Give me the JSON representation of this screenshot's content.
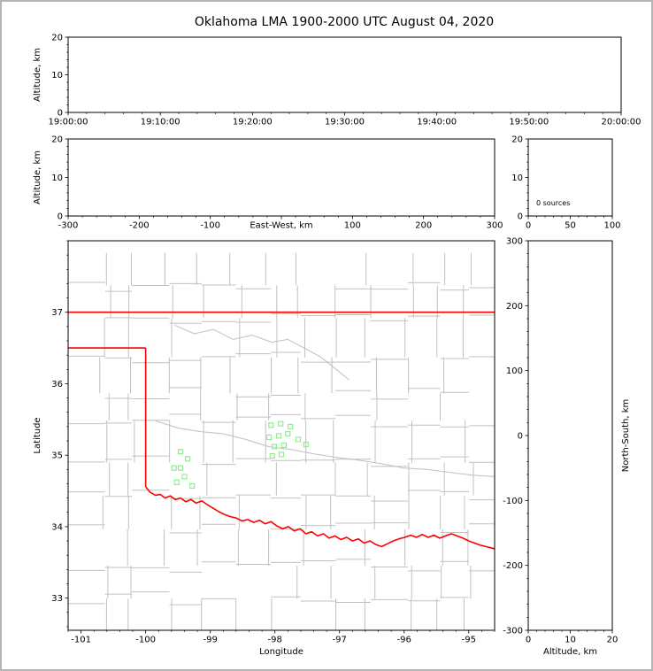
{
  "title": "Oklahoma LMA 1900-2000 UTC August 04, 2020",
  "colors": {
    "axis": "#000000",
    "state_border": "#ff0000",
    "county_lines": "#c0c0c0",
    "rivers": "#c0c0c0",
    "station_marker": "#90ee90",
    "background": "#ffffff",
    "frame": "#b4b4b4"
  },
  "chart_data": [
    {
      "id": "time_height",
      "type": "scatter",
      "xlim": [
        0,
        60
      ],
      "xticks": [
        0,
        10,
        20,
        30,
        40,
        50,
        60
      ],
      "xticklabels": [
        "19:00:00",
        "19:10:00",
        "19:20:00",
        "19:30:00",
        "19:40:00",
        "19:50:00",
        "20:00:00"
      ],
      "xminor": 2,
      "ylim": [
        0,
        20
      ],
      "yticks": [
        0,
        10,
        20
      ],
      "yminor": 2,
      "ylabel": "Altitude, km",
      "points": []
    },
    {
      "id": "ew_height",
      "type": "scatter",
      "xlim": [
        -300,
        300
      ],
      "xticks": [
        -300,
        -200,
        -100,
        0,
        100,
        200,
        300
      ],
      "xticklabels": [
        "-300",
        "-200",
        "-100",
        "",
        "100",
        "200",
        "300"
      ],
      "xminor": 20,
      "xlabel": "East-West, km",
      "xlabel_inline": true,
      "ylim": [
        0,
        20
      ],
      "yticks": [
        0,
        10,
        20
      ],
      "yminor": 2,
      "ylabel": "Altitude, km",
      "points": []
    },
    {
      "id": "alt_hist",
      "type": "line",
      "xlim": [
        0,
        100
      ],
      "xticks": [
        0,
        50,
        100
      ],
      "xminor": 10,
      "ylim": [
        0,
        20
      ],
      "yticks": [
        0,
        10,
        20
      ],
      "yminor": 2,
      "annotation": "0 sources",
      "points": []
    },
    {
      "id": "map",
      "type": "scatter",
      "xlim": [
        -101.2,
        -94.6
      ],
      "xticks": [
        -101,
        -100,
        -99,
        -98,
        -97,
        -96,
        -95
      ],
      "xminor": 0.2,
      "xlabel": "Longitude",
      "ylim": [
        32.55,
        38.0
      ],
      "yticks": [
        33,
        34,
        35,
        36,
        37
      ],
      "yminor": 0.2,
      "ylabel": "Latitude",
      "stations": [
        [
          -98.06,
          35.42
        ],
        [
          -97.91,
          35.44
        ],
        [
          -97.76,
          35.4
        ],
        [
          -98.09,
          35.25
        ],
        [
          -97.94,
          35.27
        ],
        [
          -97.8,
          35.3
        ],
        [
          -98.01,
          35.12
        ],
        [
          -97.86,
          35.14
        ],
        [
          -97.64,
          35.22
        ],
        [
          -97.52,
          35.15
        ],
        [
          -98.04,
          34.99
        ],
        [
          -97.9,
          35.01
        ],
        [
          -99.46,
          35.05
        ],
        [
          -99.35,
          34.95
        ],
        [
          -99.56,
          34.82
        ],
        [
          -99.46,
          34.82
        ],
        [
          -99.4,
          34.7
        ],
        [
          -99.52,
          34.62
        ],
        [
          -99.28,
          34.57
        ]
      ],
      "state_border": {
        "segments": [
          {
            "name": "kansas-line",
            "points": [
              [
                -101.2,
                37.0
              ],
              [
                -94.6,
                37.0
              ]
            ]
          },
          {
            "name": "panhandle-south",
            "points": [
              [
                -101.2,
                36.5
              ],
              [
                -100.0,
                36.5
              ]
            ]
          },
          {
            "name": "texas-west",
            "points": [
              [
                -100.0,
                36.5
              ],
              [
                -100.0,
                34.56
              ]
            ]
          },
          {
            "name": "red-river",
            "points": [
              [
                -100.0,
                34.56
              ],
              [
                -99.93,
                34.48
              ],
              [
                -99.85,
                34.44
              ],
              [
                -99.77,
                34.45
              ],
              [
                -99.7,
                34.4
              ],
              [
                -99.62,
                34.43
              ],
              [
                -99.54,
                34.38
              ],
              [
                -99.46,
                34.4
              ],
              [
                -99.38,
                34.35
              ],
              [
                -99.3,
                34.38
              ],
              [
                -99.22,
                34.33
              ],
              [
                -99.13,
                34.36
              ],
              [
                -99.05,
                34.31
              ],
              [
                -98.96,
                34.26
              ],
              [
                -98.87,
                34.21
              ],
              [
                -98.78,
                34.17
              ],
              [
                -98.69,
                34.14
              ],
              [
                -98.6,
                34.12
              ],
              [
                -98.51,
                34.08
              ],
              [
                -98.42,
                34.1
              ],
              [
                -98.33,
                34.06
              ],
              [
                -98.24,
                34.09
              ],
              [
                -98.15,
                34.04
              ],
              [
                -98.06,
                34.07
              ],
              [
                -97.97,
                34.01
              ],
              [
                -97.88,
                33.97
              ],
              [
                -97.79,
                34.0
              ],
              [
                -97.7,
                33.94
              ],
              [
                -97.61,
                33.97
              ],
              [
                -97.52,
                33.9
              ],
              [
                -97.43,
                33.93
              ],
              [
                -97.34,
                33.87
              ],
              [
                -97.25,
                33.9
              ],
              [
                -97.16,
                33.84
              ],
              [
                -97.07,
                33.87
              ],
              [
                -96.98,
                33.82
              ],
              [
                -96.89,
                33.85
              ],
              [
                -96.8,
                33.8
              ],
              [
                -96.71,
                33.83
              ],
              [
                -96.62,
                33.77
              ],
              [
                -96.53,
                33.8
              ],
              [
                -96.44,
                33.75
              ],
              [
                -96.35,
                33.72
              ],
              [
                -96.26,
                33.76
              ],
              [
                -96.17,
                33.8
              ],
              [
                -96.08,
                33.83
              ],
              [
                -95.99,
                33.85
              ],
              [
                -95.9,
                33.88
              ],
              [
                -95.81,
                33.85
              ],
              [
                -95.72,
                33.89
              ],
              [
                -95.63,
                33.85
              ],
              [
                -95.54,
                33.88
              ],
              [
                -95.45,
                33.84
              ],
              [
                -95.36,
                33.87
              ],
              [
                -95.27,
                33.9
              ],
              [
                -95.18,
                33.87
              ],
              [
                -95.09,
                33.84
              ],
              [
                -95.0,
                33.8
              ],
              [
                -94.91,
                33.77
              ],
              [
                -94.82,
                33.74
              ],
              [
                -94.73,
                33.72
              ],
              [
                -94.64,
                33.7
              ],
              [
                -94.6,
                33.69
              ]
            ]
          }
        ]
      },
      "rivers": [
        {
          "points": [
            [
              -99.55,
              36.82
            ],
            [
              -99.25,
              36.7
            ],
            [
              -98.95,
              36.76
            ],
            [
              -98.65,
              36.62
            ],
            [
              -98.35,
              36.68
            ],
            [
              -98.05,
              36.58
            ],
            [
              -97.8,
              36.62
            ],
            [
              -97.55,
              36.5
            ],
            [
              -97.3,
              36.38
            ],
            [
              -97.05,
              36.2
            ],
            [
              -96.85,
              36.05
            ]
          ]
        },
        {
          "points": [
            [
              -99.85,
              35.48
            ],
            [
              -99.5,
              35.38
            ],
            [
              -99.15,
              35.33
            ],
            [
              -98.8,
              35.3
            ],
            [
              -98.45,
              35.22
            ],
            [
              -98.1,
              35.12
            ],
            [
              -97.75,
              35.08
            ],
            [
              -97.4,
              35.02
            ],
            [
              -97.05,
              34.97
            ],
            [
              -96.7,
              34.93
            ],
            [
              -96.35,
              34.88
            ],
            [
              -96.0,
              34.82
            ],
            [
              -95.65,
              34.8
            ],
            [
              -95.3,
              34.76
            ],
            [
              -94.95,
              34.72
            ],
            [
              -94.6,
              34.7
            ]
          ]
        }
      ],
      "counties": {
        "cell_lon": 0.52,
        "cell_lat": 0.48,
        "jitter": 0.12,
        "skip": 0.12
      }
    },
    {
      "id": "ns_height",
      "type": "scatter",
      "xlim": [
        0,
        20
      ],
      "xticks": [
        0,
        10,
        20
      ],
      "xminor": 2,
      "xlabel": "Altitude, km",
      "ylim": [
        -300,
        300
      ],
      "yticks": [
        -300,
        -200,
        -100,
        0,
        100,
        200,
        300
      ],
      "yticklabels": [
        "-300",
        "-200",
        "-100",
        "0",
        "100",
        "200",
        "300"
      ],
      "yminor": 20,
      "ylabel_right": "North-South, km",
      "points": []
    }
  ]
}
